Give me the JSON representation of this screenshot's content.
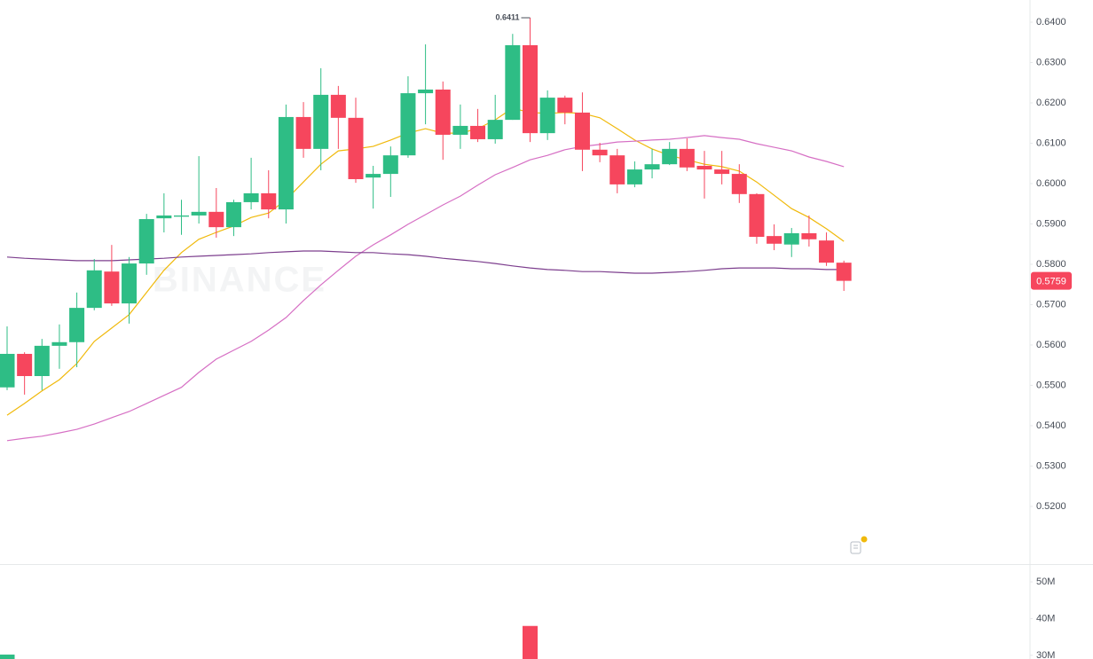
{
  "chart_data": {
    "type": "candlestick",
    "watermark": "BINANCE",
    "up_color": "#2ebd85",
    "down_color": "#f6465d",
    "open": [
      0.5495,
      0.5578,
      0.5523,
      0.5598,
      0.5607,
      0.5692,
      0.5782,
      0.5703,
      0.5802,
      0.5914,
      0.5918,
      0.5921,
      0.593,
      0.5892,
      0.5954,
      0.5976,
      0.5936,
      0.6165,
      0.6086,
      0.622,
      0.6163,
      0.6015,
      0.6024,
      0.607,
      0.6224,
      0.6233,
      0.6121,
      0.6143,
      0.611,
      0.6158,
      0.6343,
      0.6125,
      0.6213,
      0.6176,
      0.6084,
      0.607,
      0.5998,
      0.6035,
      0.6048,
      0.6086,
      0.6044,
      0.6035,
      0.6024,
      0.5974,
      0.587,
      0.5849,
      0.5877,
      0.5859,
      0.5804
    ],
    "high": [
      0.5646,
      0.5582,
      0.5615,
      0.5651,
      0.573,
      0.5813,
      0.5848,
      0.5818,
      0.5925,
      0.5976,
      0.596,
      0.6068,
      0.5989,
      0.596,
      0.6064,
      0.6033,
      0.6196,
      0.6202,
      0.6286,
      0.6242,
      0.6213,
      0.6044,
      0.6092,
      0.6266,
      0.6345,
      0.6253,
      0.6196,
      0.6185,
      0.622,
      0.6371,
      0.6411,
      0.6231,
      0.6218,
      0.6226,
      0.6101,
      0.6086,
      0.6055,
      0.6086,
      0.6103,
      0.6112,
      0.6081,
      0.6081,
      0.6048,
      0.5976,
      0.5899,
      0.589,
      0.5921,
      0.5879,
      0.5809
    ],
    "low": [
      0.5488,
      0.5477,
      0.5488,
      0.5541,
      0.5545,
      0.5686,
      0.5697,
      0.5653,
      0.5774,
      0.5879,
      0.5873,
      0.5901,
      0.5866,
      0.587,
      0.5936,
      0.5914,
      0.5901,
      0.6064,
      0.6033,
      0.6086,
      0.6002,
      0.5938,
      0.5967,
      0.6064,
      0.6147,
      0.6059,
      0.6086,
      0.6103,
      0.6099,
      0.6158,
      0.6103,
      0.6108,
      0.6147,
      0.6031,
      0.6053,
      0.5976,
      0.5991,
      0.6013,
      0.6046,
      0.6031,
      0.5963,
      0.5998,
      0.5952,
      0.5851,
      0.5835,
      0.5818,
      0.5844,
      0.5796,
      0.5734
    ],
    "close": [
      0.5578,
      0.5523,
      0.5598,
      0.5607,
      0.5692,
      0.5785,
      0.5703,
      0.5802,
      0.5912,
      0.5921,
      0.5921,
      0.593,
      0.5892,
      0.5954,
      0.5976,
      0.5936,
      0.6165,
      0.6086,
      0.622,
      0.6163,
      0.6011,
      0.6024,
      0.607,
      0.6224,
      0.6233,
      0.6121,
      0.6143,
      0.611,
      0.6158,
      0.6343,
      0.6125,
      0.6213,
      0.6176,
      0.6084,
      0.607,
      0.5998,
      0.6035,
      0.6048,
      0.6086,
      0.604,
      0.6035,
      0.6024,
      0.5974,
      0.5868,
      0.5851,
      0.5877,
      0.5862,
      0.5804,
      0.5759
    ],
    "lines": [
      {
        "color": "#f0b90b",
        "values": [
          0.5426,
          0.5455,
          0.5486,
          0.5514,
          0.5554,
          0.5609,
          0.5642,
          0.5675,
          0.573,
          0.5785,
          0.5829,
          0.5862,
          0.5879,
          0.5895,
          0.5916,
          0.5927,
          0.596,
          0.6004,
          0.6048,
          0.6081,
          0.6086,
          0.6092,
          0.6108,
          0.6125,
          0.6136,
          0.6125,
          0.6125,
          0.6136,
          0.6158,
          0.6187,
          0.6176,
          0.6174,
          0.6176,
          0.6174,
          0.6163,
          0.6136,
          0.6108,
          0.6086,
          0.607,
          0.6059,
          0.6048,
          0.6042,
          0.6031,
          0.6004,
          0.5971,
          0.5938,
          0.5916,
          0.5888,
          0.5857
        ]
      },
      {
        "color": "#d66fc4",
        "values": [
          0.5363,
          0.5369,
          0.5374,
          0.5382,
          0.5391,
          0.5404,
          0.542,
          0.5435,
          0.5455,
          0.5475,
          0.5495,
          0.5532,
          0.5565,
          0.5587,
          0.5609,
          0.5637,
          0.5668,
          0.571,
          0.5749,
          0.5785,
          0.582,
          0.5848,
          0.5873,
          0.5899,
          0.5923,
          0.5947,
          0.5969,
          0.5996,
          0.6022,
          0.604,
          0.6059,
          0.607,
          0.6084,
          0.6092,
          0.6097,
          0.6103,
          0.6105,
          0.6108,
          0.611,
          0.6114,
          0.6119,
          0.6114,
          0.611,
          0.6099,
          0.609,
          0.6081,
          0.6066,
          0.6055,
          0.6042
        ]
      },
      {
        "color": "#7d3f8e",
        "values": [
          0.5818,
          0.5815,
          0.5813,
          0.5811,
          0.5809,
          0.5809,
          0.5809,
          0.5811,
          0.5813,
          0.5815,
          0.5818,
          0.582,
          0.5822,
          0.5824,
          0.5826,
          0.5829,
          0.5831,
          0.5833,
          0.5833,
          0.5831,
          0.5829,
          0.5829,
          0.5826,
          0.5824,
          0.582,
          0.5815,
          0.5811,
          0.5807,
          0.5802,
          0.5796,
          0.5791,
          0.5787,
          0.5785,
          0.5782,
          0.5782,
          0.578,
          0.5778,
          0.5778,
          0.578,
          0.5782,
          0.5785,
          0.5789,
          0.5791,
          0.5791,
          0.5791,
          0.5789,
          0.5789,
          0.5787,
          0.5787
        ]
      }
    ],
    "ylim": [
      0.5057,
      0.6455
    ],
    "yticks": [
      {
        "value": 0.52,
        "label": "0.5200"
      },
      {
        "value": 0.53,
        "label": "0.5300"
      },
      {
        "value": 0.54,
        "label": "0.5400"
      },
      {
        "value": 0.55,
        "label": "0.5500"
      },
      {
        "value": 0.56,
        "label": "0.5600"
      },
      {
        "value": 0.57,
        "label": "0.5700"
      },
      {
        "value": 0.58,
        "label": "0.5800"
      },
      {
        "value": 0.59,
        "label": "0.5900"
      },
      {
        "value": 0.6,
        "label": "0.6000"
      },
      {
        "value": 0.61,
        "label": "0.6100"
      },
      {
        "value": 0.62,
        "label": "0.6200"
      },
      {
        "value": 0.63,
        "label": "0.6300"
      },
      {
        "value": 0.64,
        "label": "0.6400"
      }
    ],
    "volume": {
      "values": [
        30200000,
        null,
        null,
        null,
        null,
        null,
        null,
        null,
        null,
        null,
        null,
        null,
        null,
        null,
        null,
        null,
        null,
        null,
        null,
        null,
        null,
        null,
        null,
        null,
        null,
        null,
        null,
        null,
        null,
        null,
        38000000,
        null,
        null,
        null,
        null,
        null,
        null,
        null,
        null,
        null,
        null,
        null,
        null,
        null,
        null,
        null,
        null,
        null,
        null
      ],
      "ylim": [
        29000000,
        54600000
      ],
      "yticks": [
        {
          "value": 30000000,
          "label": "30M"
        },
        {
          "value": 40000000,
          "label": "40M"
        },
        {
          "value": 50000000,
          "label": "50M"
        }
      ]
    }
  }
}
